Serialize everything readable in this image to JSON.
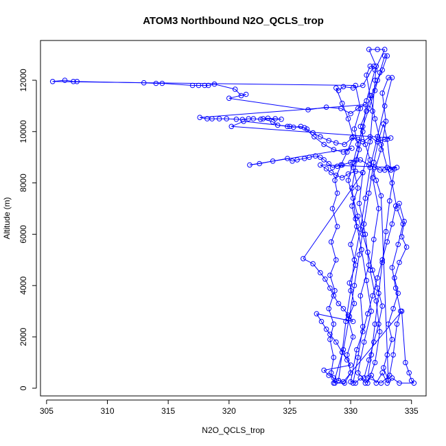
{
  "chart_data": {
    "type": "line",
    "title": "ATOM3 Northbound N2O_QCLS_trop",
    "xlabel": "N2O_QCLS_trop",
    "ylabel": "Altitude (m)",
    "xlim": [
      304.5,
      336.2
    ],
    "ylim": [
      -300,
      13550
    ],
    "xticks": [
      305,
      310,
      315,
      320,
      325,
      330,
      335
    ],
    "yticks": [
      0,
      2000,
      4000,
      6000,
      8000,
      10000,
      12000
    ],
    "grid": false,
    "legend": "none",
    "series": [
      {
        "color": "#0000ff",
        "marker": "open-circle",
        "points": [
          [
            330.2,
            200
          ],
          [
            330.6,
            1200
          ],
          [
            331.0,
            2400
          ],
          [
            330.8,
            3600
          ],
          [
            331.5,
            4800
          ],
          [
            331.2,
            6000
          ],
          [
            330.7,
            7200
          ],
          [
            331.0,
            8400
          ],
          [
            331.6,
            9600
          ],
          [
            331.8,
            10800
          ],
          [
            332.0,
            12000
          ],
          [
            332.1,
            12550
          ],
          [
            331.5,
            13200
          ],
          [
            332.2,
            13200
          ],
          [
            332.8,
            13200
          ],
          [
            332.0,
            12400
          ],
          [
            331.3,
            11200
          ],
          [
            331.0,
            10000
          ],
          [
            330.5,
            8900
          ],
          [
            330.1,
            7800
          ],
          [
            330.4,
            6600
          ],
          [
            330.9,
            5400
          ],
          [
            331.3,
            4200
          ],
          [
            331.7,
            3000
          ],
          [
            331.1,
            1800
          ],
          [
            330.6,
            600
          ],
          [
            331.4,
            200
          ],
          [
            332.0,
            1000
          ],
          [
            332.4,
            2200
          ],
          [
            332.1,
            3400
          ],
          [
            331.6,
            4600
          ],
          [
            331.9,
            5800
          ],
          [
            332.3,
            7000
          ],
          [
            331.8,
            8200
          ],
          [
            332.5,
            9300
          ],
          [
            332.9,
            10400
          ],
          [
            332.6,
            11500
          ],
          [
            333.1,
            12100
          ],
          [
            333.4,
            12100
          ],
          [
            332.8,
            11000
          ],
          [
            332.2,
            9800
          ],
          [
            331.6,
            8600
          ],
          [
            331.2,
            7400
          ],
          [
            330.8,
            6200
          ],
          [
            330.3,
            5000
          ],
          [
            330.0,
            3800
          ],
          [
            329.6,
            2600
          ],
          [
            329.3,
            1400
          ],
          [
            329.0,
            300
          ],
          [
            328.6,
            200
          ],
          [
            329.4,
            1500
          ],
          [
            329.9,
            2800
          ],
          [
            330.3,
            4000
          ],
          [
            330.7,
            5200
          ],
          [
            331.1,
            6400
          ],
          [
            331.5,
            7600
          ],
          [
            331.9,
            8800
          ],
          [
            332.3,
            9700
          ],
          [
            332.7,
            10300
          ],
          [
            333.0,
            9700
          ],
          [
            333.3,
            8500
          ],
          [
            333.6,
            8550
          ],
          [
            333.2,
            7300
          ],
          [
            332.9,
            6100
          ],
          [
            332.6,
            4900
          ],
          [
            332.3,
            3700
          ],
          [
            332.0,
            2500
          ],
          [
            331.7,
            1300
          ],
          [
            331.4,
            400
          ],
          [
            332.5,
            200
          ],
          [
            333.2,
            500
          ],
          [
            333.5,
            1300
          ],
          [
            333.8,
            2500
          ],
          [
            334.1,
            3000
          ],
          [
            333.7,
            3900
          ],
          [
            333.4,
            4700
          ],
          [
            333.9,
            5600
          ],
          [
            334.3,
            6400
          ],
          [
            333.8,
            7000
          ],
          [
            333.4,
            8000
          ],
          [
            333.0,
            8600
          ],
          [
            332.5,
            9500
          ],
          [
            332.0,
            10500
          ],
          [
            331.6,
            11400
          ],
          [
            331.3,
            12200
          ],
          [
            331.6,
            12550
          ],
          [
            331.9,
            12550
          ],
          [
            331.0,
            11800
          ],
          [
            330.2,
            11700
          ],
          [
            329.4,
            11750
          ],
          [
            329.0,
            11600
          ],
          [
            328.8,
            11700
          ],
          [
            329.3,
            11100
          ],
          [
            329.8,
            10500
          ],
          [
            330.2,
            9800
          ],
          [
            329.7,
            9200
          ],
          [
            329.2,
            8700
          ],
          [
            328.7,
            8100
          ],
          [
            328.9,
            7600
          ],
          [
            328.5,
            7000
          ],
          [
            328.9,
            6300
          ],
          [
            328.4,
            5700
          ],
          [
            328.8,
            5000
          ],
          [
            328.3,
            4400
          ],
          [
            328.7,
            3800
          ],
          [
            328.2,
            3100
          ],
          [
            328.6,
            2500
          ],
          [
            328.3,
            1900
          ],
          [
            328.6,
            1200
          ],
          [
            328.4,
            600
          ],
          [
            328.7,
            200
          ],
          [
            329.5,
            200
          ],
          [
            330.0,
            600
          ],
          [
            329.7,
            1300
          ],
          [
            330.2,
            2000
          ],
          [
            329.8,
            2700
          ],
          [
            330.3,
            3300
          ],
          [
            329.9,
            4100
          ],
          [
            330.4,
            4800
          ],
          [
            330.0,
            5600
          ],
          [
            330.5,
            6300
          ],
          [
            330.1,
            7100
          ],
          [
            330.6,
            7800
          ],
          [
            330.2,
            8600
          ],
          [
            330.7,
            9300
          ],
          [
            330.3,
            10100
          ],
          [
            330.8,
            10900
          ],
          [
            330.4,
            11800
          ],
          [
            305.5,
            11950
          ],
          [
            306.5,
            12000
          ],
          [
            307.2,
            11950
          ],
          [
            307.5,
            11950
          ],
          [
            313.0,
            11900
          ],
          [
            314.0,
            11880
          ],
          [
            314.5,
            11880
          ],
          [
            317.0,
            11800
          ],
          [
            317.5,
            11800
          ],
          [
            318.0,
            11800
          ],
          [
            318.3,
            11800
          ],
          [
            318.8,
            11850
          ],
          [
            320.5,
            11650
          ],
          [
            321.0,
            11400
          ],
          [
            321.4,
            11450
          ],
          [
            320.0,
            11300
          ],
          [
            326.5,
            10850
          ],
          [
            328.0,
            10950
          ],
          [
            329.2,
            10900
          ],
          [
            330.0,
            10700
          ],
          [
            330.6,
            10900
          ],
          [
            331.2,
            11050
          ],
          [
            317.6,
            10550
          ],
          [
            318.2,
            10500
          ],
          [
            318.6,
            10500
          ],
          [
            319.2,
            10500
          ],
          [
            319.8,
            10500
          ],
          [
            320.6,
            10480
          ],
          [
            321.1,
            10470
          ],
          [
            321.6,
            10500
          ],
          [
            322.0,
            10500
          ],
          [
            322.6,
            10480
          ],
          [
            323.2,
            10520
          ],
          [
            323.8,
            10500
          ],
          [
            324.3,
            10480
          ],
          [
            322.8,
            10500
          ],
          [
            323.6,
            10380
          ],
          [
            324.0,
            10250
          ],
          [
            324.8,
            10200
          ],
          [
            325.3,
            10170
          ],
          [
            325.9,
            10200
          ],
          [
            326.4,
            10100
          ],
          [
            326.9,
            9950
          ],
          [
            327.5,
            9800
          ],
          [
            328.2,
            9650
          ],
          [
            328.8,
            9560
          ],
          [
            329.5,
            9500
          ],
          [
            330.1,
            9750
          ],
          [
            330.6,
            9700
          ],
          [
            331.0,
            9600
          ],
          [
            331.6,
            9800
          ],
          [
            332.2,
            9600
          ],
          [
            332.8,
            9700
          ],
          [
            333.3,
            9750
          ],
          [
            320.2,
            10200
          ],
          [
            321.2,
            10400
          ],
          [
            325.0,
            10200
          ],
          [
            326.2,
            10150
          ],
          [
            327.0,
            9800
          ],
          [
            327.8,
            9500
          ],
          [
            328.6,
            9300
          ],
          [
            329.4,
            9200
          ],
          [
            330.1,
            9350
          ],
          [
            321.7,
            8700
          ],
          [
            322.5,
            8750
          ],
          [
            323.6,
            8850
          ],
          [
            324.8,
            8950
          ],
          [
            325.2,
            8850
          ],
          [
            325.6,
            8900
          ],
          [
            326.2,
            8950
          ],
          [
            326.6,
            9000
          ],
          [
            327.1,
            9050
          ],
          [
            327.5,
            9000
          ],
          [
            327.8,
            8900
          ],
          [
            328.2,
            8750
          ],
          [
            328.5,
            8600
          ],
          [
            328.9,
            8650
          ],
          [
            329.3,
            8700
          ],
          [
            330.0,
            8800
          ],
          [
            330.8,
            8900
          ],
          [
            331.5,
            8700
          ],
          [
            332.0,
            8600
          ],
          [
            332.4,
            8500
          ],
          [
            332.8,
            8500
          ],
          [
            333.2,
            8550
          ],
          [
            333.8,
            8600
          ],
          [
            327.5,
            8700
          ],
          [
            328.0,
            8550
          ],
          [
            328.4,
            8400
          ],
          [
            328.8,
            8300
          ],
          [
            329.3,
            8200
          ],
          [
            329.8,
            8350
          ],
          [
            330.4,
            8450
          ],
          [
            331.0,
            8400
          ],
          [
            326.1,
            5050
          ],
          [
            326.9,
            4850
          ],
          [
            327.5,
            4500
          ],
          [
            327.9,
            4250
          ],
          [
            328.3,
            3900
          ],
          [
            328.6,
            3600
          ],
          [
            329.0,
            3300
          ],
          [
            329.4,
            3100
          ],
          [
            329.8,
            2850
          ],
          [
            330.2,
            2600
          ],
          [
            327.2,
            2900
          ],
          [
            327.6,
            2600
          ],
          [
            328.0,
            2300
          ],
          [
            328.3,
            2100
          ],
          [
            328.8,
            1800
          ],
          [
            329.3,
            1400
          ],
          [
            329.7,
            1100
          ],
          [
            330.0,
            900
          ],
          [
            327.8,
            700
          ],
          [
            328.2,
            500
          ],
          [
            328.6,
            400
          ],
          [
            329.0,
            300
          ],
          [
            329.4,
            250
          ],
          [
            334.2,
            3000
          ],
          [
            334.5,
            1000
          ],
          [
            334.8,
            600
          ],
          [
            335.0,
            300
          ],
          [
            335.2,
            200
          ],
          [
            334.0,
            200
          ],
          [
            333.4,
            400
          ],
          [
            333.0,
            200
          ],
          [
            332.6,
            600
          ],
          [
            332.1,
            200
          ],
          [
            331.7,
            500
          ],
          [
            331.2,
            200
          ],
          [
            330.8,
            400
          ],
          [
            330.4,
            200
          ],
          [
            330.0,
            250
          ],
          [
            330.5,
            1500
          ],
          [
            331.0,
            2200
          ],
          [
            331.4,
            2900
          ],
          [
            331.8,
            3600
          ],
          [
            332.2,
            4300
          ],
          [
            332.6,
            5000
          ],
          [
            333.0,
            5700
          ],
          [
            333.4,
            6400
          ],
          [
            333.7,
            7100
          ],
          [
            334.0,
            7200
          ],
          [
            334.4,
            6500
          ],
          [
            334.2,
            5900
          ],
          [
            334.6,
            5500
          ],
          [
            334.0,
            4900
          ],
          [
            333.6,
            4300
          ],
          [
            333.9,
            3700
          ],
          [
            333.5,
            3100
          ],
          [
            333.1,
            2500
          ],
          [
            333.4,
            1900
          ],
          [
            333.0,
            1300
          ],
          [
            332.7,
            800
          ],
          [
            333.1,
            300
          ],
          [
            332.5,
            7500
          ],
          [
            332.1,
            8100
          ],
          [
            331.6,
            8900
          ],
          [
            331.2,
            9500
          ],
          [
            330.8,
            10200
          ],
          [
            331.3,
            10800
          ],
          [
            331.7,
            11400
          ],
          [
            332.2,
            12000
          ],
          [
            332.6,
            12400
          ],
          [
            333.0,
            12950
          ],
          [
            332.8,
            12950
          ],
          [
            332.4,
            12300
          ],
          [
            332.0,
            11600
          ],
          [
            331.5,
            10900
          ],
          [
            331.0,
            10200
          ],
          [
            330.6,
            9500
          ],
          [
            330.2,
            8800
          ],
          [
            329.8,
            8100
          ],
          [
            330.2,
            7400
          ],
          [
            330.6,
            6700
          ],
          [
            331.0,
            6000
          ],
          [
            331.4,
            5300
          ],
          [
            331.8,
            4600
          ],
          [
            332.2,
            3900
          ],
          [
            332.6,
            3200
          ],
          [
            332.3,
            2500
          ],
          [
            331.9,
            1800
          ],
          [
            331.5,
            1100
          ],
          [
            331.1,
            400
          ]
        ]
      }
    ]
  }
}
